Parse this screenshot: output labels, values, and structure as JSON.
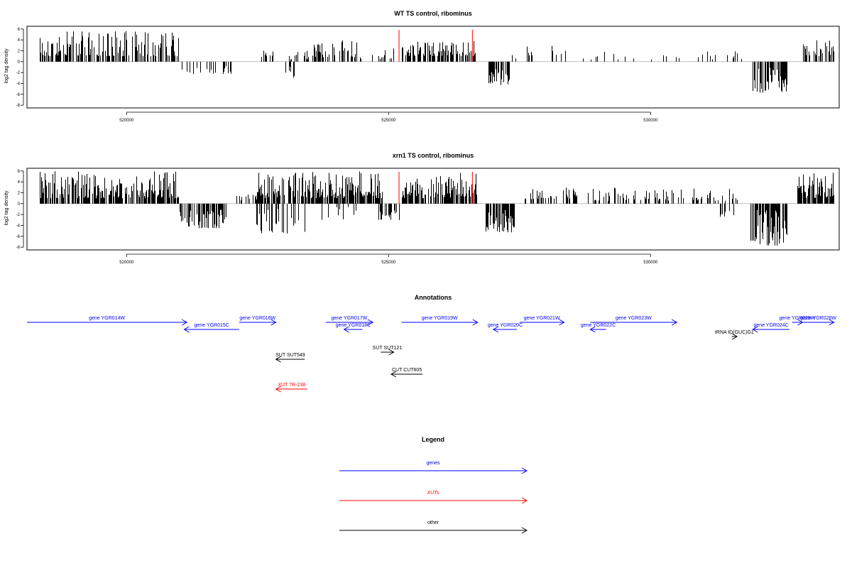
{
  "chart_data": [
    {
      "type": "bar",
      "title": "WT TS control, ribominus",
      "ylabel": "log2 tag density",
      "xlim": [
        518100,
        533600
      ],
      "ylim": [
        -8,
        6.5
      ],
      "yticks": [
        -8,
        -6,
        -4,
        -2,
        0,
        2,
        4,
        6
      ],
      "xticks": [
        520000,
        525000,
        530000
      ],
      "markers": [
        525200,
        526600
      ],
      "marker_color": "#ff0000",
      "segments": [
        {
          "from": 518350,
          "to": 521000,
          "min": 1.0,
          "max": 5.6,
          "density": 0.55
        },
        {
          "from": 521050,
          "to": 522000,
          "min": -2.3,
          "max": -0.4,
          "density": 0.3
        },
        {
          "from": 522500,
          "to": 522800,
          "min": 0.8,
          "max": 2.2,
          "density": 0.3
        },
        {
          "from": 522950,
          "to": 523200,
          "min": -3.0,
          "max": -0.5,
          "density": 0.3
        },
        {
          "from": 523100,
          "to": 523700,
          "min": 0.4,
          "max": 2.0,
          "density": 0.25
        },
        {
          "from": 523550,
          "to": 524450,
          "min": 0.8,
          "max": 4.0,
          "density": 0.5
        },
        {
          "from": 524450,
          "to": 525150,
          "min": 0.5,
          "max": 2.5,
          "density": 0.2
        },
        {
          "from": 525250,
          "to": 526650,
          "min": 1.0,
          "max": 3.8,
          "density": 0.55
        },
        {
          "from": 526900,
          "to": 527300,
          "min": -4.3,
          "max": -1.0,
          "density": 0.7
        },
        {
          "from": 527300,
          "to": 528500,
          "min": 0.6,
          "max": 3.0,
          "density": 0.15
        },
        {
          "from": 528700,
          "to": 531800,
          "min": 0.4,
          "max": 2.0,
          "density": 0.12
        },
        {
          "from": 531950,
          "to": 532600,
          "min": -5.8,
          "max": -1.0,
          "density": 0.65
        },
        {
          "from": 532900,
          "to": 533500,
          "min": 1.0,
          "max": 4.0,
          "density": 0.6
        }
      ]
    },
    {
      "type": "bar",
      "title": "xrn1 TS control, ribominus",
      "ylabel": "log2 tag density",
      "xlim": [
        518100,
        533600
      ],
      "ylim": [
        -8,
        6.5
      ],
      "yticks": [
        -8,
        -6,
        -4,
        -2,
        0,
        2,
        4,
        6
      ],
      "xticks": [
        520000,
        525000,
        530000
      ],
      "markers": [
        525200,
        526600
      ],
      "marker_color": "#ff0000",
      "segments": [
        {
          "from": 518350,
          "to": 521000,
          "min": 1.0,
          "max": 6.0,
          "density": 0.75
        },
        {
          "from": 521000,
          "to": 521900,
          "min": -4.5,
          "max": -0.5,
          "density": 0.6
        },
        {
          "from": 522100,
          "to": 522500,
          "min": 0.5,
          "max": 2.5,
          "density": 0.3
        },
        {
          "from": 522450,
          "to": 523400,
          "min": -5.5,
          "max": -0.5,
          "density": 0.35
        },
        {
          "from": 522500,
          "to": 524900,
          "min": 1.0,
          "max": 6.0,
          "density": 0.7
        },
        {
          "from": 523700,
          "to": 524400,
          "min": -3.0,
          "max": -0.5,
          "density": 0.25
        },
        {
          "from": 524800,
          "to": 525200,
          "min": -3.0,
          "max": -0.5,
          "density": 0.3
        },
        {
          "from": 525250,
          "to": 526700,
          "min": 1.0,
          "max": 5.8,
          "density": 0.75
        },
        {
          "from": 526850,
          "to": 527400,
          "min": -5.3,
          "max": -1.0,
          "density": 0.75
        },
        {
          "from": 527600,
          "to": 528600,
          "min": 0.8,
          "max": 4.0,
          "density": 0.4
        },
        {
          "from": 528800,
          "to": 531700,
          "min": 0.5,
          "max": 3.0,
          "density": 0.35
        },
        {
          "from": 531200,
          "to": 531600,
          "min": -2.5,
          "max": -0.5,
          "density": 0.25
        },
        {
          "from": 531900,
          "to": 532600,
          "min": -7.7,
          "max": -1.0,
          "density": 0.8
        },
        {
          "from": 532800,
          "to": 533500,
          "min": 1.0,
          "max": 6.0,
          "density": 0.75
        }
      ]
    }
  ],
  "annotations": {
    "title": "Annotations",
    "colors": {
      "gene": "#0000ff",
      "xut": "#ff0000",
      "other": "#000000"
    },
    "features": [
      {
        "label": "gene YGR014W",
        "start": 518100,
        "end": 521150,
        "strand": "+",
        "row": 0,
        "kind": "gene"
      },
      {
        "label": "gene YGR015C",
        "start": 521100,
        "end": 522150,
        "strand": "-",
        "row": 1,
        "kind": "gene"
      },
      {
        "label": "gene YGR016W",
        "start": 522150,
        "end": 522850,
        "strand": "+",
        "row": 0,
        "kind": "gene"
      },
      {
        "label": "gene YGR017W",
        "start": 523800,
        "end": 524700,
        "strand": "+",
        "row": 0,
        "kind": "gene"
      },
      {
        "label": "gene YGR018C",
        "start": 524150,
        "end": 524500,
        "strand": "-",
        "row": 1,
        "kind": "gene"
      },
      {
        "label": "gene YGR019W",
        "start": 525250,
        "end": 526700,
        "strand": "+",
        "row": 0,
        "kind": "gene"
      },
      {
        "label": "gene YGR020C",
        "start": 527000,
        "end": 527450,
        "strand": "-",
        "row": 1,
        "kind": "gene"
      },
      {
        "label": "gene YGR021W",
        "start": 527500,
        "end": 528350,
        "strand": "+",
        "row": 0,
        "kind": "gene"
      },
      {
        "label": "gene YGR022C",
        "start": 528850,
        "end": 529150,
        "strand": "-",
        "row": 1,
        "kind": "gene"
      },
      {
        "label": "gene YGR023W",
        "start": 528850,
        "end": 530500,
        "strand": "+",
        "row": 0,
        "kind": "gene"
      },
      {
        "label": "tRNA tD(GUC)G1",
        "start": 531550,
        "end": 531650,
        "strand": "+",
        "row": 2,
        "kind": "other"
      },
      {
        "label": "gene YGR024C",
        "start": 531950,
        "end": 532650,
        "strand": "-",
        "row": 1,
        "kind": "gene"
      },
      {
        "label": "gene YGR025W",
        "start": 532700,
        "end": 532900,
        "strand": "+",
        "row": 0,
        "kind": "gene"
      },
      {
        "label": "gene YGR026W",
        "start": 532900,
        "end": 533500,
        "strand": "+",
        "row": 0,
        "kind": "gene"
      },
      {
        "label": "SUT SUT549",
        "start": 522850,
        "end": 523400,
        "strand": "-",
        "row": 3,
        "kind": "other"
      },
      {
        "label": "SUT SUT121",
        "start": 524850,
        "end": 525100,
        "strand": "+",
        "row": 4,
        "kind": "other"
      },
      {
        "label": "CUT CUT605",
        "start": 525050,
        "end": 525650,
        "strand": "-",
        "row": 5,
        "kind": "other"
      },
      {
        "label": "XUT 7R-238",
        "start": 522850,
        "end": 523450,
        "strand": "-",
        "row": 6,
        "kind": "xut"
      }
    ]
  },
  "legend": {
    "title": "Legend",
    "items": [
      {
        "label": "genes",
        "color": "#0000ff"
      },
      {
        "label": "XUTs",
        "color": "#ff0000"
      },
      {
        "label": "other",
        "color": "#000000"
      }
    ]
  }
}
